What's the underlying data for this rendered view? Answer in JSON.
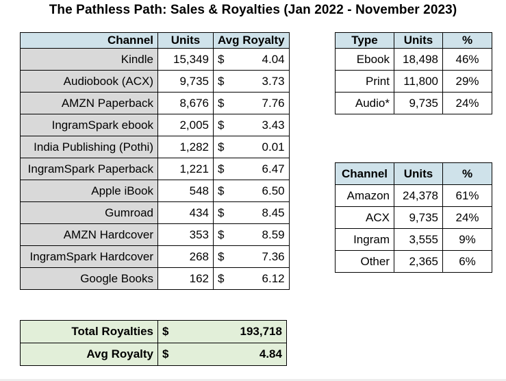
{
  "title": "The Pathless Path: Sales & Royalties (Jan 2022 - November 2023)",
  "main_table": {
    "headers": [
      "Channel",
      "Units",
      "Avg Royalty"
    ],
    "currency": "$",
    "rows": [
      {
        "channel": "Kindle",
        "units": "15,349",
        "royalty": "4.04"
      },
      {
        "channel": "Audiobook (ACX)",
        "units": "9,735",
        "royalty": "3.73"
      },
      {
        "channel": "AMZN Paperback",
        "units": "8,676",
        "royalty": "7.76"
      },
      {
        "channel": "IngramSpark ebook",
        "units": "2,005",
        "royalty": "3.43"
      },
      {
        "channel": "India Publishing (Pothi)",
        "units": "1,282",
        "royalty": "0.01"
      },
      {
        "channel": "IngramSpark Paperback",
        "units": "1,221",
        "royalty": "6.47"
      },
      {
        "channel": "Apple iBook",
        "units": "548",
        "royalty": "6.50"
      },
      {
        "channel": "Gumroad",
        "units": "434",
        "royalty": "8.45"
      },
      {
        "channel": "AMZN Hardcover",
        "units": "353",
        "royalty": "8.59"
      },
      {
        "channel": "IngramSpark Hardcover",
        "units": "268",
        "royalty": "7.36"
      },
      {
        "channel": "Google Books",
        "units": "162",
        "royalty": "6.12"
      }
    ]
  },
  "type_table": {
    "headers": [
      "Type",
      "Units",
      "%"
    ],
    "rows": [
      {
        "label": "Ebook",
        "units": "18,498",
        "pct": "46%"
      },
      {
        "label": "Print",
        "units": "11,800",
        "pct": "29%"
      },
      {
        "label": "Audio*",
        "units": "9,735",
        "pct": "24%"
      }
    ]
  },
  "channel_table": {
    "headers": [
      "Channel",
      "Units",
      "%"
    ],
    "rows": [
      {
        "label": "Amazon",
        "units": "24,378",
        "pct": "61%"
      },
      {
        "label": "ACX",
        "units": "9,735",
        "pct": "24%"
      },
      {
        "label": "Ingram",
        "units": "3,555",
        "pct": "9%"
      },
      {
        "label": "Other",
        "units": "2,365",
        "pct": "6%"
      }
    ]
  },
  "totals": {
    "currency": "$",
    "total_label": "Total Royalties",
    "total_value": "193,718",
    "avg_label": "Avg Royalty",
    "avg_value": "4.84"
  }
}
